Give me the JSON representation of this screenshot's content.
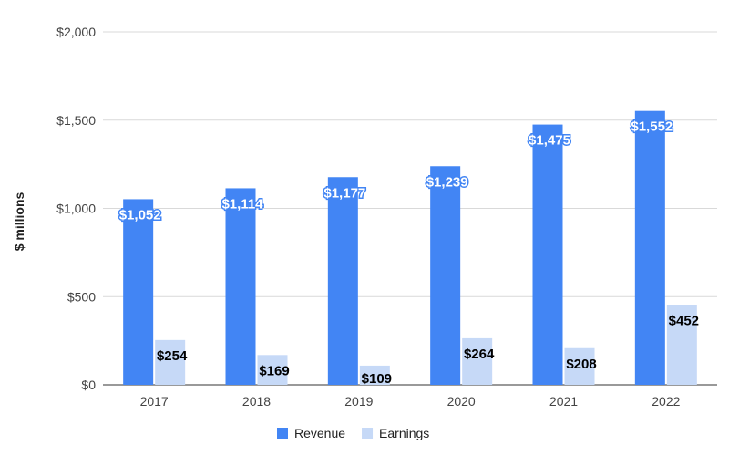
{
  "chart_data": {
    "type": "bar",
    "categories": [
      "2017",
      "2018",
      "2019",
      "2020",
      "2021",
      "2022"
    ],
    "series": [
      {
        "name": "Revenue",
        "values": [
          1052,
          1114,
          1177,
          1239,
          1475,
          1552
        ],
        "labels": [
          "$1,052",
          "$1,114",
          "$1,177",
          "$1,239",
          "$1,475",
          "$1,552"
        ],
        "color": "#4285f4"
      },
      {
        "name": "Earnings",
        "values": [
          254,
          169,
          109,
          264,
          208,
          452
        ],
        "labels": [
          "$254",
          "$169",
          "$109",
          "$264",
          "$208",
          "$452"
        ],
        "color": "#c6d9f7"
      }
    ],
    "ylabel": "$ millions",
    "ylim": [
      0,
      2000
    ],
    "yticks": [
      0,
      500,
      1000,
      1500,
      2000
    ],
    "ytick_labels": [
      "$0",
      "$500",
      "$1,000",
      "$1,500",
      "$2,000"
    ],
    "grid": true,
    "legend_position": "bottom"
  }
}
